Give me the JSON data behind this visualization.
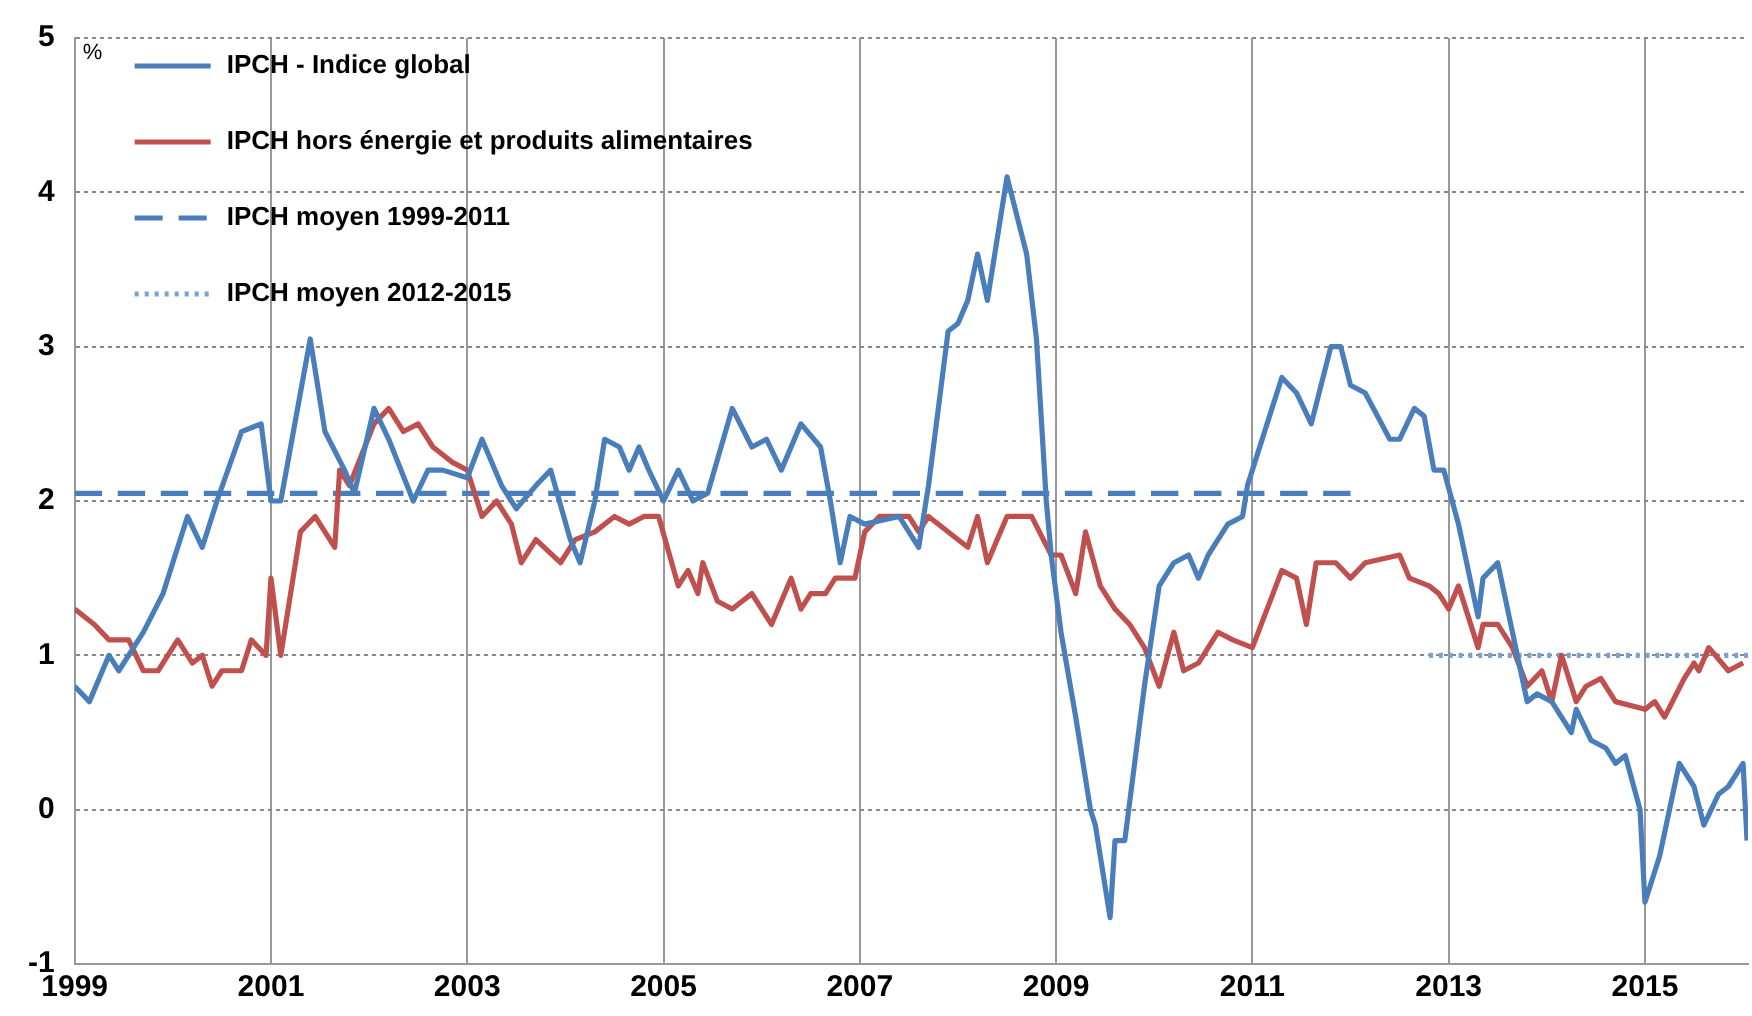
{
  "chart_data": {
    "type": "line",
    "ylabel": "%",
    "xlim": [
      1999,
      2016.05
    ],
    "xticks": [
      1999,
      2001,
      2003,
      2005,
      2007,
      2009,
      2011,
      2013,
      2015
    ],
    "ylim": [
      -1,
      5
    ],
    "yticks": [
      -1,
      0,
      1,
      2,
      3,
      4,
      5
    ],
    "grid": true,
    "legend": "top left",
    "series": [
      {
        "name": "IPCH - Indice global",
        "color": "#4a7ebb",
        "line_style": "solid",
        "x": [
          1999.0,
          1999.15,
          1999.35,
          1999.45,
          1999.7,
          1999.9,
          2000.05,
          2000.15,
          2000.3,
          2000.45,
          2000.7,
          2000.9,
          2001.0,
          2001.1,
          2001.4,
          2001.55,
          2001.75,
          2001.85,
          2002.05,
          2002.2,
          2002.45,
          2002.6,
          2002.75,
          2003.0,
          2003.15,
          2003.35,
          2003.5,
          2003.7,
          2003.85,
          2004.05,
          2004.15,
          2004.3,
          2004.4,
          2004.55,
          2004.65,
          2004.75,
          2004.85,
          2005.0,
          2005.15,
          2005.3,
          2005.45,
          2005.7,
          2005.9,
          2006.05,
          2006.2,
          2006.4,
          2006.6,
          2006.7,
          2006.8,
          2006.9,
          2007.05,
          2007.4,
          2007.6,
          2007.7,
          2007.9,
          2008.0,
          2008.1,
          2008.2,
          2008.3,
          2008.5,
          2008.7,
          2008.8,
          2008.9,
          2008.95,
          2009.05,
          2009.2,
          2009.35,
          2009.4,
          2009.55,
          2009.6,
          2009.7,
          2009.9,
          2010.05,
          2010.2,
          2010.35,
          2010.45,
          2010.55,
          2010.75,
          2010.9,
          2010.95,
          2011.0,
          2011.15,
          2011.3,
          2011.45,
          2011.6,
          2011.8,
          2011.9,
          2012.0,
          2012.15,
          2012.4,
          2012.5,
          2012.65,
          2012.75,
          2012.85,
          2012.95,
          2013.1,
          2013.3,
          2013.35,
          2013.5,
          2013.65,
          2013.8,
          2013.9,
          2014.05,
          2014.25,
          2014.3,
          2014.45,
          2014.6,
          2014.7,
          2014.8,
          2014.95,
          2015.0,
          2015.15,
          2015.35,
          2015.5,
          2015.6,
          2015.75,
          2015.85,
          2016.0,
          2016.04
        ],
        "values": [
          0.8,
          0.7,
          1.0,
          0.9,
          1.15,
          1.4,
          1.7,
          1.9,
          1.7,
          2.0,
          2.45,
          2.5,
          2.0,
          2.0,
          3.05,
          2.45,
          2.2,
          2.05,
          2.6,
          2.4,
          2.0,
          2.2,
          2.2,
          2.15,
          2.4,
          2.1,
          1.95,
          2.1,
          2.2,
          1.75,
          1.6,
          2.0,
          2.4,
          2.35,
          2.2,
          2.35,
          2.2,
          2.0,
          2.2,
          2.0,
          2.05,
          2.6,
          2.35,
          2.4,
          2.2,
          2.5,
          2.35,
          2.0,
          1.6,
          1.9,
          1.85,
          1.9,
          1.7,
          2.1,
          3.1,
          3.15,
          3.3,
          3.6,
          3.3,
          4.1,
          3.6,
          3.05,
          2.0,
          1.65,
          1.15,
          0.6,
          0.0,
          -0.1,
          -0.7,
          -0.2,
          -0.2,
          0.8,
          1.45,
          1.6,
          1.65,
          1.5,
          1.65,
          1.85,
          1.9,
          2.1,
          2.2,
          2.5,
          2.8,
          2.7,
          2.5,
          3.0,
          3.0,
          2.75,
          2.7,
          2.4,
          2.4,
          2.6,
          2.55,
          2.2,
          2.2,
          1.85,
          1.25,
          1.5,
          1.6,
          1.15,
          0.7,
          0.75,
          0.7,
          0.5,
          0.65,
          0.45,
          0.4,
          0.3,
          0.35,
          0.0,
          -0.6,
          -0.3,
          0.3,
          0.15,
          -0.1,
          0.1,
          0.15,
          0.3,
          -0.2
        ]
      },
      {
        "name": "IPCH hors énergie et produits alimentaires",
        "color": "#c0504d",
        "line_style": "solid",
        "x": [
          1999.0,
          1999.2,
          1999.35,
          1999.55,
          1999.7,
          1999.85,
          2000.05,
          2000.2,
          2000.3,
          2000.4,
          2000.5,
          2000.7,
          2000.8,
          2000.95,
          2001.0,
          2001.1,
          2001.3,
          2001.45,
          2001.65,
          2001.7,
          2001.8,
          2002.05,
          2002.2,
          2002.35,
          2002.5,
          2002.65,
          2002.85,
          2003.0,
          2003.15,
          2003.3,
          2003.45,
          2003.55,
          2003.7,
          2003.95,
          2004.1,
          2004.3,
          2004.5,
          2004.65,
          2004.8,
          2004.95,
          2005.15,
          2005.25,
          2005.35,
          2005.4,
          2005.55,
          2005.7,
          2005.9,
          2006.1,
          2006.3,
          2006.4,
          2006.5,
          2006.65,
          2006.75,
          2006.95,
          2007.05,
          2007.2,
          2007.5,
          2007.6,
          2007.7,
          2008.1,
          2008.2,
          2008.3,
          2008.4,
          2008.5,
          2008.75,
          2008.95,
          2009.05,
          2009.2,
          2009.3,
          2009.45,
          2009.6,
          2009.75,
          2009.9,
          2010.05,
          2010.2,
          2010.3,
          2010.45,
          2010.65,
          2010.8,
          2011.0,
          2011.3,
          2011.45,
          2011.55,
          2011.65,
          2011.85,
          2012.0,
          2012.15,
          2012.5,
          2012.6,
          2012.8,
          2012.9,
          2013.0,
          2013.1,
          2013.3,
          2013.35,
          2013.5,
          2013.65,
          2013.8,
          2013.95,
          2014.05,
          2014.15,
          2014.3,
          2014.4,
          2014.55,
          2014.7,
          2015.0,
          2015.1,
          2015.2,
          2015.4,
          2015.5,
          2015.55,
          2015.65,
          2015.85,
          2016.0
        ],
        "values": [
          1.3,
          1.2,
          1.1,
          1.1,
          0.9,
          0.9,
          1.1,
          0.95,
          1.0,
          0.8,
          0.9,
          0.9,
          1.1,
          1.0,
          1.5,
          1.0,
          1.8,
          1.9,
          1.7,
          2.2,
          2.1,
          2.5,
          2.6,
          2.45,
          2.5,
          2.35,
          2.25,
          2.2,
          1.9,
          2.0,
          1.85,
          1.6,
          1.75,
          1.6,
          1.75,
          1.8,
          1.9,
          1.85,
          1.9,
          1.9,
          1.45,
          1.55,
          1.4,
          1.6,
          1.35,
          1.3,
          1.4,
          1.2,
          1.5,
          1.3,
          1.4,
          1.4,
          1.5,
          1.5,
          1.8,
          1.9,
          1.9,
          1.8,
          1.9,
          1.7,
          1.9,
          1.6,
          1.75,
          1.9,
          1.9,
          1.65,
          1.65,
          1.4,
          1.8,
          1.45,
          1.3,
          1.2,
          1.05,
          0.8,
          1.15,
          0.9,
          0.95,
          1.15,
          1.1,
          1.05,
          1.55,
          1.5,
          1.2,
          1.6,
          1.6,
          1.5,
          1.6,
          1.65,
          1.5,
          1.45,
          1.4,
          1.3,
          1.45,
          1.05,
          1.2,
          1.2,
          1.05,
          0.8,
          0.9,
          0.7,
          1.0,
          0.7,
          0.8,
          0.85,
          0.7,
          0.65,
          0.7,
          0.6,
          0.85,
          0.95,
          0.9,
          1.05,
          0.9,
          0.95
        ]
      },
      {
        "name": "IPCH moyen 1999-2011",
        "color": "#4a7ebb",
        "line_style": "dashed",
        "x": [
          1999.0,
          2012.0
        ],
        "values": [
          2.05,
          2.05
        ]
      },
      {
        "name": "IPCH moyen 2012-2015",
        "color": "#7aa0d4",
        "line_style": "dotted",
        "x": [
          2012.8,
          2016.05
        ],
        "values": [
          1.0,
          1.0
        ]
      }
    ]
  }
}
